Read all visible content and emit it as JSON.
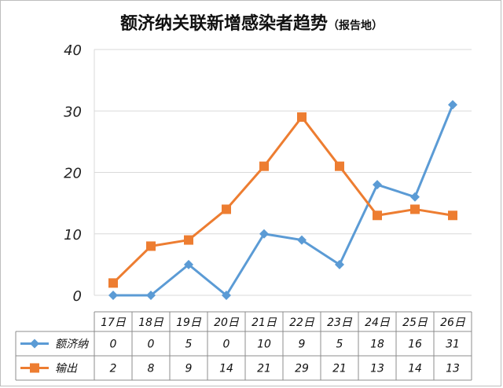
{
  "title": "额济纳关联新增感染者趋势",
  "subtitle": "（报告地）",
  "chart_data": {
    "type": "line",
    "categories": [
      "17日",
      "18日",
      "19日",
      "20日",
      "21日",
      "22日",
      "23日",
      "24日",
      "25日",
      "26日"
    ],
    "series": [
      {
        "name": "额济纳",
        "values": [
          0,
          0,
          5,
          0,
          10,
          9,
          5,
          18,
          16,
          31
        ],
        "color": "#5B9BD5",
        "marker": "diamond"
      },
      {
        "name": "输出",
        "values": [
          2,
          8,
          9,
          14,
          21,
          29,
          21,
          13,
          14,
          13
        ],
        "color": "#ED7D31",
        "marker": "square"
      }
    ],
    "y_ticks": [
      "0",
      "10",
      "20",
      "30",
      "40"
    ],
    "ylim": [
      0,
      40
    ],
    "grid": true,
    "data_table": true
  }
}
